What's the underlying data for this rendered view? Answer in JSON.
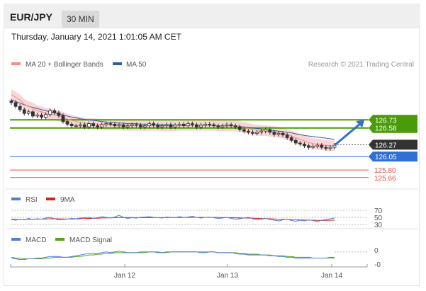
{
  "header": {
    "symbol": "EUR/JPY",
    "interval": "30 MIN"
  },
  "timestamp": "Thursday, January 14, 2021 1:01:05 AM CET",
  "legend": {
    "ma20_label": "MA 20 + Bollinger Bands",
    "ma50_label": "MA 50",
    "credit": "Research © 2021 Trading Central",
    "rsi_label": "RSI",
    "rsi_ma_label": "9MA",
    "macd_label": "MACD",
    "macd_signal_label": "MACD Signal"
  },
  "colors": {
    "bollinger_fill": "#f9d6d6",
    "ma20": "#f28c8c",
    "ma50": "#2e5e9e",
    "resistance": "#4a9b0a",
    "current": "#333333",
    "support_blue": "#2f6fd6",
    "support_red": "#e84a4a",
    "candle": "#333333",
    "rsi": "#4f7fd8",
    "rsi_ma": "#d42020",
    "macd": "#4f7fd8",
    "macd_signal": "#5aa21a"
  },
  "chart_data": {
    "type": "line",
    "subtype": "candlestick",
    "x_ticks": [
      "Jan 12",
      "Jan 13",
      "Jan 14"
    ],
    "y_domain": [
      125.5,
      127.6
    ],
    "price_levels": [
      {
        "label": "126.73",
        "value": 126.73,
        "kind": "resistance"
      },
      {
        "label": "126.58",
        "value": 126.58,
        "kind": "resistance"
      },
      {
        "label": "126.27",
        "value": 126.27,
        "kind": "current"
      },
      {
        "label": "126.05",
        "value": 126.05,
        "kind": "support_blue"
      },
      {
        "label": "125.80",
        "value": 125.8,
        "kind": "support_red"
      },
      {
        "label": "125.66",
        "value": 125.66,
        "kind": "support_red"
      }
    ],
    "projection_target": 126.73,
    "close_series": [
      127.05,
      126.98,
      126.92,
      126.85,
      126.88,
      126.8,
      126.82,
      126.78,
      126.83,
      126.9,
      126.86,
      126.81,
      126.7,
      126.65,
      126.62,
      126.62,
      126.64,
      126.6,
      126.66,
      126.62,
      126.6,
      126.64,
      126.66,
      126.65,
      126.62,
      126.64,
      126.6,
      126.62,
      126.64,
      126.63,
      126.6,
      126.62,
      126.66,
      126.63,
      126.6,
      126.62,
      126.64,
      126.6,
      126.63,
      126.65,
      126.62,
      126.66,
      126.64,
      126.6,
      126.63,
      126.65,
      126.64,
      126.62,
      126.6,
      126.62,
      126.64,
      126.62,
      126.6,
      126.55,
      126.52,
      126.5,
      126.48,
      126.5,
      126.52,
      126.55,
      126.5,
      126.46,
      126.48,
      126.45,
      126.4,
      126.35,
      126.3,
      126.28,
      126.25,
      126.22,
      126.24,
      126.26,
      126.22,
      126.2,
      126.22,
      126.26
    ],
    "ma20_series": [
      127.2,
      127.15,
      127.1,
      127.02,
      126.98,
      126.95,
      126.9,
      126.88,
      126.85,
      126.84,
      126.82,
      126.8,
      126.78,
      126.74,
      126.72,
      126.7,
      126.68,
      126.67,
      126.66,
      126.66,
      126.65,
      126.65,
      126.64,
      126.64,
      126.64,
      126.64,
      126.63,
      126.63,
      126.63,
      126.63,
      126.63,
      126.62,
      126.63,
      126.63,
      126.63,
      126.62,
      126.62,
      126.62,
      126.62,
      126.63,
      126.63,
      126.63,
      126.63,
      126.63,
      126.63,
      126.63,
      126.63,
      126.63,
      126.62,
      126.62,
      126.62,
      126.62,
      126.62,
      126.61,
      126.59,
      126.57,
      126.55,
      126.54,
      126.53,
      126.53,
      126.52,
      126.51,
      126.5,
      126.48,
      126.46,
      126.43,
      126.4,
      126.37,
      126.34,
      126.31,
      126.29,
      126.28,
      126.27,
      126.26,
      126.25,
      126.25
    ],
    "ma50_series": [
      127.1,
      127.07,
      127.04,
      127.01,
      126.98,
      126.96,
      126.94,
      126.92,
      126.9,
      126.88,
      126.86,
      126.84,
      126.82,
      126.8,
      126.78,
      126.77,
      126.75,
      126.74,
      126.73,
      126.72,
      126.71,
      126.7,
      126.69,
      126.68,
      126.68,
      126.67,
      126.67,
      126.66,
      126.66,
      126.66,
      126.65,
      126.65,
      126.65,
      126.64,
      126.64,
      126.64,
      126.64,
      126.64,
      126.63,
      126.63,
      126.63,
      126.63,
      126.63,
      126.63,
      126.63,
      126.63,
      126.63,
      126.62,
      126.62,
      126.62,
      126.62,
      126.62,
      126.62,
      126.61,
      126.6,
      126.59,
      126.58,
      126.57,
      126.56,
      126.55,
      126.54,
      126.53,
      126.52,
      126.51,
      126.5,
      126.49,
      126.47,
      126.46,
      126.44,
      126.43,
      126.42,
      126.41,
      126.4,
      126.39,
      126.38,
      126.37
    ],
    "rsi": {
      "ticks": [
        "70",
        "50",
        "30"
      ],
      "domain": [
        20,
        80
      ],
      "rsi_series": [
        44,
        42,
        45,
        43,
        47,
        44,
        46,
        45,
        48,
        50,
        46,
        43,
        44,
        45,
        47,
        46,
        48,
        49,
        50,
        47,
        49,
        52,
        50,
        48,
        51,
        56,
        50,
        47,
        49,
        48,
        50,
        51,
        52,
        50,
        49,
        48,
        51,
        50,
        49,
        52,
        50,
        51,
        53,
        50,
        48,
        50,
        51,
        49,
        47,
        48,
        50,
        47,
        45,
        46,
        48,
        50,
        46,
        43,
        45,
        47,
        44,
        42,
        40,
        43,
        45,
        41,
        39,
        42,
        40,
        43,
        41,
        38,
        42,
        44,
        46,
        48
      ],
      "ma_series": [
        45,
        44.5,
        44.3,
        44.2,
        44.6,
        44.7,
        45,
        45.1,
        45.4,
        46,
        46.2,
        45.8,
        45.5,
        45.3,
        45.4,
        45.6,
        46,
        46.5,
        47,
        47.2,
        47.6,
        48.2,
        48.6,
        48.8,
        49,
        49.6,
        49.7,
        49.5,
        49.4,
        49.2,
        49.1,
        49.2,
        49.3,
        49.3,
        49.3,
        49.2,
        49.4,
        49.4,
        49.4,
        49.6,
        49.7,
        49.8,
        50.1,
        50.1,
        50,
        50,
        50,
        49.9,
        49.7,
        49.5,
        49.4,
        49.1,
        48.7,
        48.3,
        48.1,
        48,
        47.6,
        47.1,
        46.8,
        46.5,
        46,
        45.4,
        44.8,
        44.5,
        44.3,
        43.8,
        43.2,
        42.9,
        42.5,
        42.3,
        42.1,
        41.6,
        41.4,
        41.4,
        41.7,
        42.1
      ]
    },
    "macd": {
      "ticks": [
        "0",
        "-0"
      ],
      "domain": [
        -0.15,
        0.1
      ],
      "macd_series": [
        -0.08,
        -0.09,
        -0.1,
        -0.1,
        -0.09,
        -0.09,
        -0.08,
        -0.08,
        -0.07,
        -0.06,
        -0.06,
        -0.06,
        -0.07,
        -0.07,
        -0.06,
        -0.05,
        -0.04,
        -0.03,
        -0.02,
        -0.02,
        -0.02,
        -0.01,
        0,
        -0.01,
        0,
        0.01,
        0,
        -0.01,
        -0.01,
        -0.01,
        0,
        0,
        0,
        0,
        -0.01,
        -0.01,
        0,
        0,
        0,
        0,
        0,
        0,
        0,
        0,
        -0.01,
        -0.01,
        0,
        0,
        -0.01,
        -0.01,
        -0.01,
        -0.01,
        -0.02,
        -0.03,
        -0.03,
        -0.04,
        -0.04,
        -0.04,
        -0.04,
        -0.04,
        -0.05,
        -0.05,
        -0.06,
        -0.06,
        -0.07,
        -0.07,
        -0.08,
        -0.08,
        -0.08,
        -0.08,
        -0.08,
        -0.08,
        -0.08,
        -0.08,
        -0.07,
        -0.07
      ],
      "signal_series": [
        -0.07,
        -0.08,
        -0.08,
        -0.09,
        -0.09,
        -0.09,
        -0.09,
        -0.09,
        -0.08,
        -0.08,
        -0.07,
        -0.07,
        -0.07,
        -0.07,
        -0.07,
        -0.06,
        -0.06,
        -0.05,
        -0.04,
        -0.04,
        -0.03,
        -0.03,
        -0.02,
        -0.02,
        -0.01,
        -0.01,
        -0.01,
        -0.01,
        -0.01,
        -0.01,
        -0.01,
        -0.01,
        0,
        0,
        0,
        -0.01,
        -0.01,
        0,
        0,
        0,
        0,
        0,
        0,
        0,
        0,
        0,
        0,
        0,
        -0.01,
        -0.01,
        -0.01,
        -0.01,
        -0.01,
        -0.02,
        -0.02,
        -0.03,
        -0.03,
        -0.03,
        -0.04,
        -0.04,
        -0.04,
        -0.05,
        -0.05,
        -0.05,
        -0.06,
        -0.06,
        -0.07,
        -0.07,
        -0.07,
        -0.07,
        -0.08,
        -0.08,
        -0.08,
        -0.08,
        -0.08,
        -0.08
      ]
    }
  }
}
